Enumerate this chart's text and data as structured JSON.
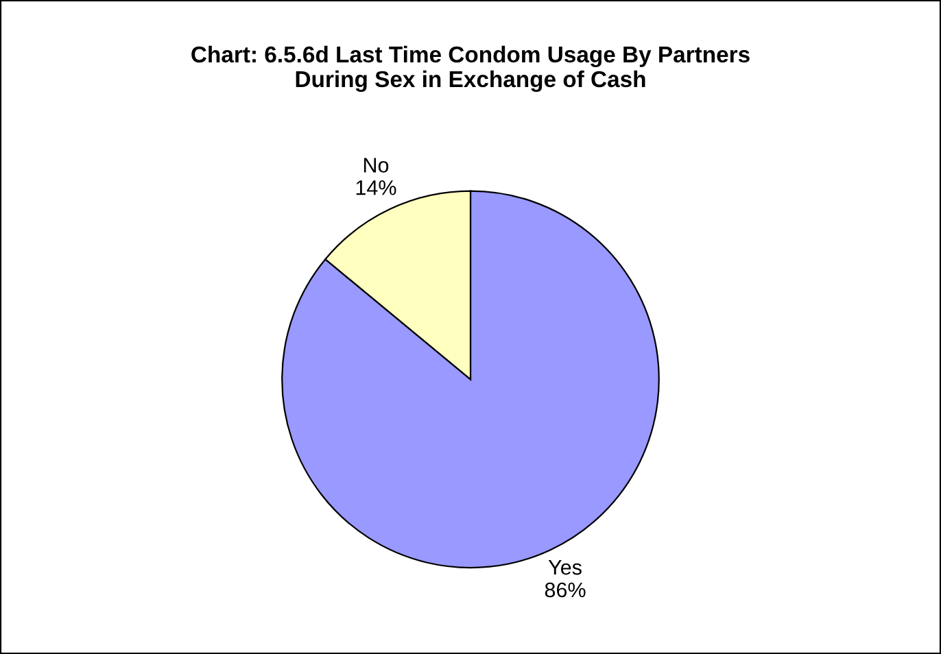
{
  "chart_data": {
    "type": "pie",
    "title": "Chart: 6.5.6d Last Time Condom Usage By Partners\nDuring Sex in Exchange of Cash",
    "categories": [
      "Yes",
      "No"
    ],
    "values": [
      86,
      14
    ],
    "value_labels": [
      "86%",
      "14%"
    ],
    "colors": [
      "#9999ff",
      "#ffffc0"
    ]
  }
}
